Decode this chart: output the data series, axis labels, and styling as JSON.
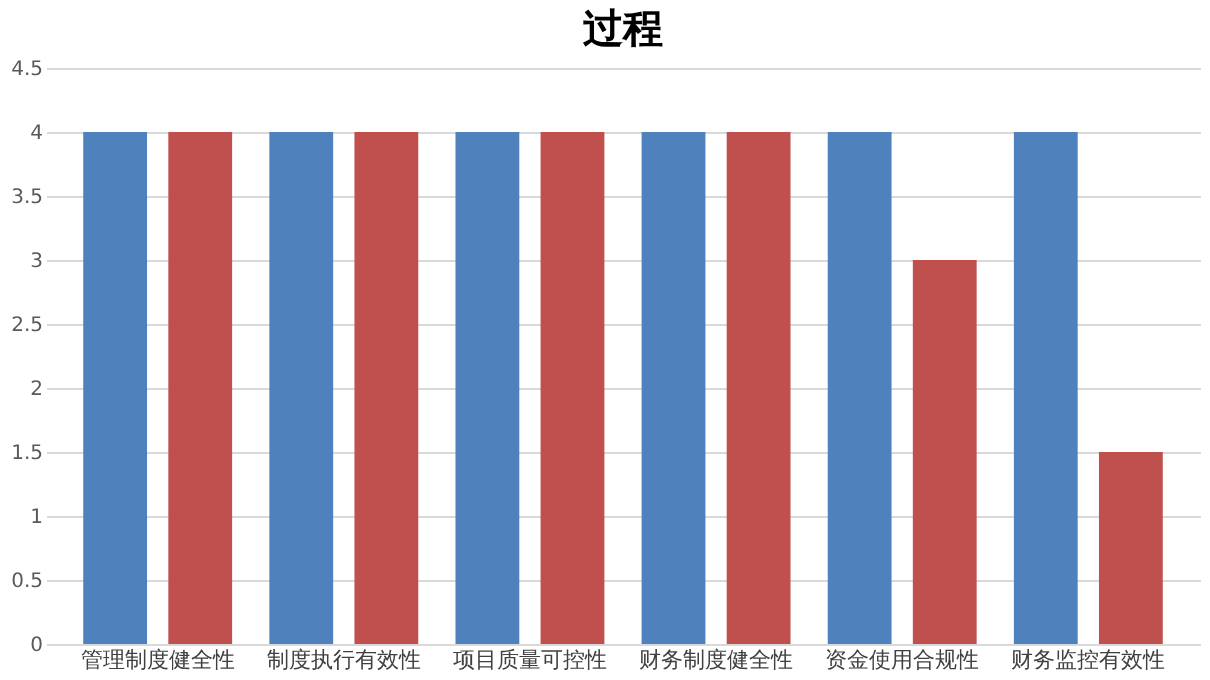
{
  "chart_data": {
    "type": "bar",
    "title": "过程",
    "categories": [
      "管理制度健全性",
      "制度执行有效性",
      "项目质量可控性",
      "财务制度健全性",
      "资金使用合规性",
      "财务监控有效性"
    ],
    "series": [
      {
        "color": "#4f81bd",
        "values": [
          4,
          4,
          4,
          4,
          4,
          4
        ]
      },
      {
        "color": "#c0504d",
        "values": [
          4,
          4,
          4,
          4,
          3,
          1.5
        ]
      }
    ],
    "ylim": [
      0,
      4.5
    ],
    "yticks": [
      0,
      0.5,
      1,
      1.5,
      2,
      2.5,
      3,
      3.5,
      4,
      4.5
    ],
    "grid": "y",
    "legend": false
  }
}
